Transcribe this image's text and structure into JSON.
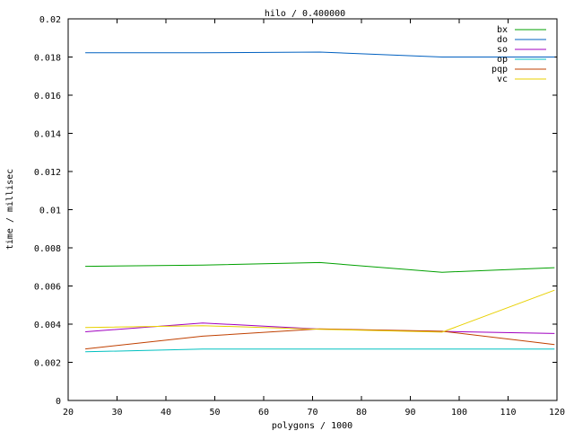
{
  "chart_data": {
    "type": "line",
    "title": "hilo / 0.400000",
    "xlabel": "polygons / 1000",
    "ylabel": "time / millisec",
    "xlim": [
      20,
      120
    ],
    "ylim": [
      0,
      0.02
    ],
    "x_ticks": [
      "20",
      "30",
      "40",
      "50",
      "60",
      "70",
      "80",
      "90",
      "100",
      "110",
      "120"
    ],
    "y_ticks": [
      "0",
      "0.002",
      "0.004",
      "0.006",
      "0.008",
      "0.01",
      "0.012",
      "0.014",
      "0.016",
      "0.018",
      "0.02"
    ],
    "grid": false,
    "legend_position": "top-right",
    "series": [
      {
        "name": "bx",
        "color": "#00a000",
        "x": [
          23.5,
          47.5,
          71.5,
          96.5,
          119.5
        ],
        "y": [
          0.00703,
          0.00709,
          0.00723,
          0.00672,
          0.00696
        ]
      },
      {
        "name": "do",
        "color": "#0060c0",
        "x": [
          23.5,
          47.5,
          71.5,
          96.5,
          119.5
        ],
        "y": [
          0.01822,
          0.01822,
          0.01826,
          0.018,
          0.018
        ]
      },
      {
        "name": "so",
        "color": "#a000c0",
        "x": [
          23.5,
          47.5,
          71.5,
          96.5,
          119.5
        ],
        "y": [
          0.0036,
          0.00406,
          0.00374,
          0.00362,
          0.00351
        ]
      },
      {
        "name": "op",
        "color": "#00c0c0",
        "x": [
          23.5,
          47.5,
          71.5,
          96.5,
          119.5
        ],
        "y": [
          0.00255,
          0.00269,
          0.00269,
          0.00269,
          0.00269
        ]
      },
      {
        "name": "pqp",
        "color": "#c04000",
        "x": [
          23.5,
          47.5,
          71.5,
          96.5,
          119.5
        ],
        "y": [
          0.0027,
          0.00337,
          0.00375,
          0.00363,
          0.00293
        ]
      },
      {
        "name": "vc",
        "color": "#e8d000",
        "x": [
          23.5,
          47.5,
          71.5,
          96.5,
          119.5
        ],
        "y": [
          0.00382,
          0.00392,
          0.00373,
          0.00358,
          0.00578
        ]
      }
    ]
  }
}
